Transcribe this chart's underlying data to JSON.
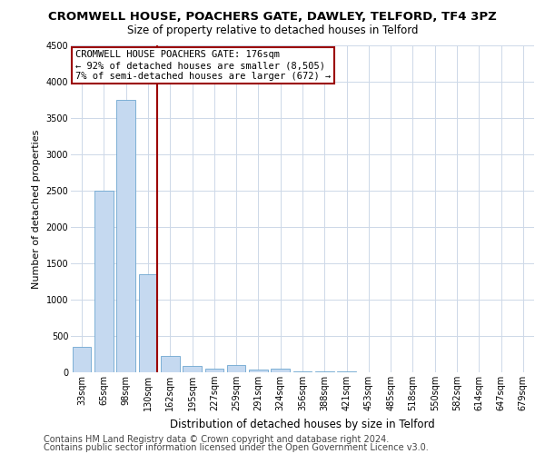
{
  "title": "CROMWELL HOUSE, POACHERS GATE, DAWLEY, TELFORD, TF4 3PZ",
  "subtitle": "Size of property relative to detached houses in Telford",
  "xlabel": "Distribution of detached houses by size in Telford",
  "ylabel": "Number of detached properties",
  "categories": [
    "33sqm",
    "65sqm",
    "98sqm",
    "130sqm",
    "162sqm",
    "195sqm",
    "227sqm",
    "259sqm",
    "291sqm",
    "324sqm",
    "356sqm",
    "388sqm",
    "421sqm",
    "453sqm",
    "485sqm",
    "518sqm",
    "550sqm",
    "582sqm",
    "614sqm",
    "647sqm",
    "679sqm"
  ],
  "values": [
    350,
    2500,
    3750,
    1350,
    220,
    90,
    50,
    100,
    40,
    55,
    12,
    10,
    8,
    5,
    4,
    3,
    3,
    2,
    2,
    1,
    1
  ],
  "bar_color": "#c5d9f0",
  "bar_edge_color": "#6ea6d0",
  "highlight_color": "#9b0000",
  "highlight_line_after_index": 3,
  "annotation_text": "CROMWELL HOUSE POACHERS GATE: 176sqm\n← 92% of detached houses are smaller (8,505)\n7% of semi-detached houses are larger (672) →",
  "annotation_box_color": "#ffffff",
  "annotation_box_edgecolor": "#9b0000",
  "ylim": [
    0,
    4500
  ],
  "yticks": [
    0,
    500,
    1000,
    1500,
    2000,
    2500,
    3000,
    3500,
    4000,
    4500
  ],
  "footer1": "Contains HM Land Registry data © Crown copyright and database right 2024.",
  "footer2": "Contains public sector information licensed under the Open Government Licence v3.0.",
  "title_fontsize": 9.5,
  "subtitle_fontsize": 8.5,
  "xlabel_fontsize": 8.5,
  "ylabel_fontsize": 8,
  "tick_fontsize": 7,
  "annotation_fontsize": 7.5,
  "footer_fontsize": 7,
  "bg_color": "#ffffff",
  "grid_color": "#cdd8e8"
}
